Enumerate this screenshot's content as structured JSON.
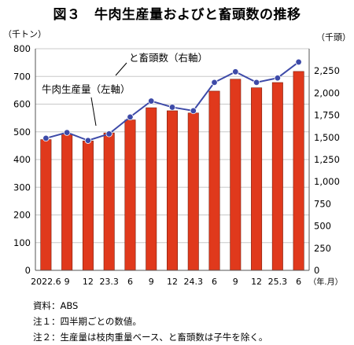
{
  "title": "図３　牛肉生産量およびと畜頭数の推移",
  "notes": [
    "資料：ABS",
    "注１：四半期ごとの数値。",
    "注２：生産量は枝肉重量ベース、と畜頭数は子牛を除く。"
  ],
  "colors": {
    "bar": "#e0391c",
    "bar_edge": "#7a1d0c",
    "line": "#3d4aa8",
    "marker": "#3d4aa8",
    "grid": "#c8c8c8"
  },
  "chart_data": {
    "type": "bar",
    "categories": [
      "2022.6",
      "9",
      "12",
      "23.3",
      "6",
      "9",
      "12",
      "24.3",
      "6",
      "9",
      "12",
      "25.3",
      "6"
    ],
    "x_unit_label": "（年.月）",
    "series": [
      {
        "name": "牛肉生産量（左軸）",
        "type": "bar",
        "axis": "left",
        "values": [
          472,
          492,
          467,
          496,
          543,
          587,
          576,
          568,
          647,
          690,
          659,
          678,
          718
        ]
      },
      {
        "name": "と畜頭数（右軸）",
        "type": "line",
        "axis": "right",
        "values": [
          1490,
          1555,
          1465,
          1540,
          1730,
          1910,
          1840,
          1800,
          2120,
          2240,
          2120,
          2170,
          2350
        ]
      }
    ],
    "y_left": {
      "label": "（千トン）",
      "ylim": [
        0,
        800
      ],
      "ticks": [
        "0",
        "100",
        "200",
        "300",
        "400",
        "500",
        "600",
        "700",
        "800"
      ]
    },
    "y_right": {
      "label": "（千頭）",
      "ylim": [
        0,
        2500
      ],
      "ticks": [
        "0",
        "250",
        "500",
        "750",
        "1,000",
        "1,250",
        "1,500",
        "1,750",
        "2,000",
        "2,250"
      ]
    },
    "grid": true
  }
}
